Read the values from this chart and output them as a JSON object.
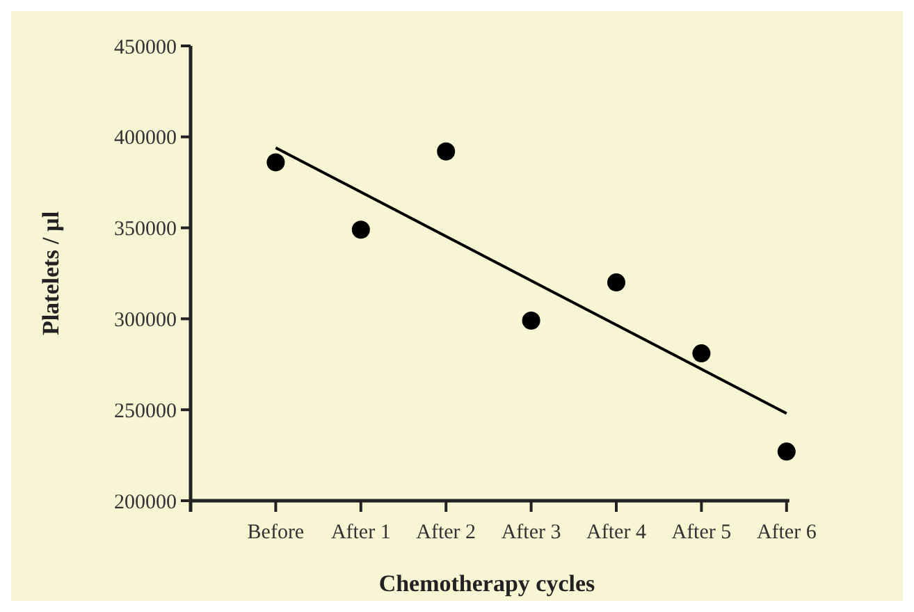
{
  "chart_data": {
    "type": "scatter",
    "xlabel": "Chemotherapy cycles",
    "ylabel": "Platelets / µl",
    "categories": [
      "Before",
      "After 1",
      "After 2",
      "After 3",
      "After 4",
      "After 5",
      "After 6"
    ],
    "series": [
      {
        "color": "#000000",
        "marker": "circle",
        "values": [
          386000,
          349000,
          392000,
          299000,
          320000,
          281000,
          227000
        ]
      },
      {
        "type": "line",
        "color": "#000000",
        "line_style": "solid",
        "x": [
          "Before",
          "After 6"
        ],
        "values": [
          394000,
          248000
        ]
      }
    ],
    "ylim": [
      200000,
      450000
    ],
    "yticks": [
      200000,
      250000,
      300000,
      350000,
      400000,
      450000
    ]
  }
}
